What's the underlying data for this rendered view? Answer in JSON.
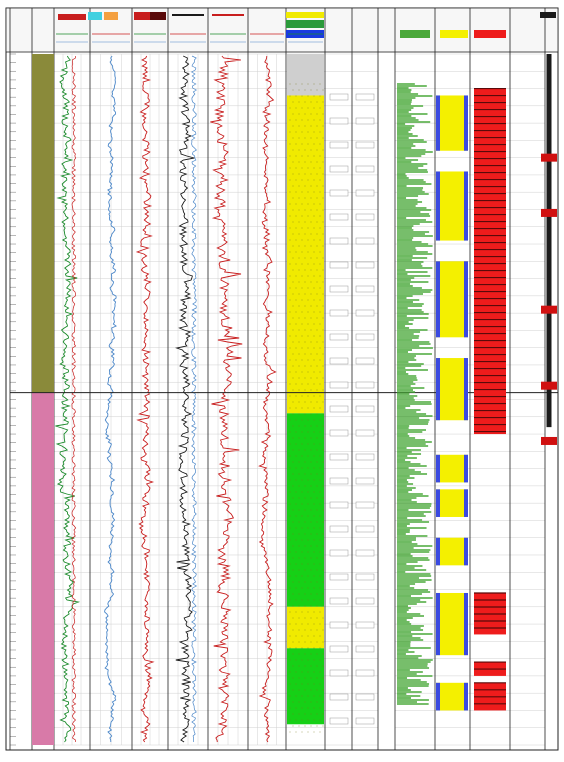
{
  "colors": {
    "frame": "#222222",
    "grid": "#d0d0d0",
    "formation_upper": "#8a8a3a",
    "formation_lower": "#d87aa8",
    "gr_curve": "#1a8a2a",
    "sp_curve": "#4a86c8",
    "red_curve": "#c81e1e",
    "black_curve": "#1a1a1a",
    "dark_red_curve": "#7a1010",
    "lith_sand": "#f0ea00",
    "lith_shale": "#16d016",
    "lith_top_green": "#2a9a3a",
    "lith_top_blue": "#1a3ae0",
    "porosity_green": "#4aa83a",
    "saturation_yellow": "#f4f000",
    "saturation_blue": "#3a4ae0",
    "oil_red": "#ee1c1c",
    "oil_dark": "#5a0a0a",
    "marker_red": "#d01010"
  },
  "chart_data": {
    "type": "line",
    "title": "",
    "depth_range": [
      0,
      100
    ],
    "formations": [
      {
        "from": 0,
        "to": 49,
        "color_key": "formation_upper"
      },
      {
        "from": 49,
        "to": 100,
        "color_key": "formation_lower"
      }
    ],
    "lithology_column": [
      {
        "from": 0,
        "to": 6,
        "type": "header_gray"
      },
      {
        "from": 6,
        "to": 49,
        "type": "sand"
      },
      {
        "from": 49,
        "to": 52,
        "type": "sand"
      },
      {
        "from": 52,
        "to": 80,
        "type": "shale"
      },
      {
        "from": 80,
        "to": 86,
        "type": "sand"
      },
      {
        "from": 86,
        "to": 97,
        "type": "shale"
      }
    ],
    "curves": [
      {
        "track": 1,
        "color_key": "gr_curve",
        "base": 0.35,
        "amp": 0.18,
        "seed": 3
      },
      {
        "track": 2,
        "color_key": "sp_curve",
        "base": 0.5,
        "amp": 0.06,
        "seed": 7
      },
      {
        "track": 3,
        "color_key": "red_curve",
        "base": 0.4,
        "amp": 0.16,
        "seed": 11
      },
      {
        "track": 4,
        "color_key": "black_curve",
        "base": 0.45,
        "amp": 0.2,
        "seed": 13
      },
      {
        "track": 5,
        "color_key": "red_curve",
        "base": 0.4,
        "amp": 0.25,
        "seed": 17
      },
      {
        "track": 6,
        "color_key": "red_curve",
        "base": 0.5,
        "amp": 0.12,
        "seed": 19
      }
    ],
    "interpretation": {
      "pay_intervals": [
        [
          6,
          14
        ],
        [
          17,
          27
        ],
        [
          30,
          41
        ],
        [
          44,
          53
        ],
        [
          58,
          62
        ],
        [
          63,
          67
        ],
        [
          70,
          74
        ],
        [
          78,
          87
        ],
        [
          91,
          95
        ]
      ],
      "oil_intervals": [
        [
          5,
          55
        ],
        [
          78,
          84
        ],
        [
          88,
          90
        ],
        [
          91,
          95
        ]
      ]
    },
    "depth_markers": [
      15,
      23,
      37,
      48,
      56
    ]
  }
}
